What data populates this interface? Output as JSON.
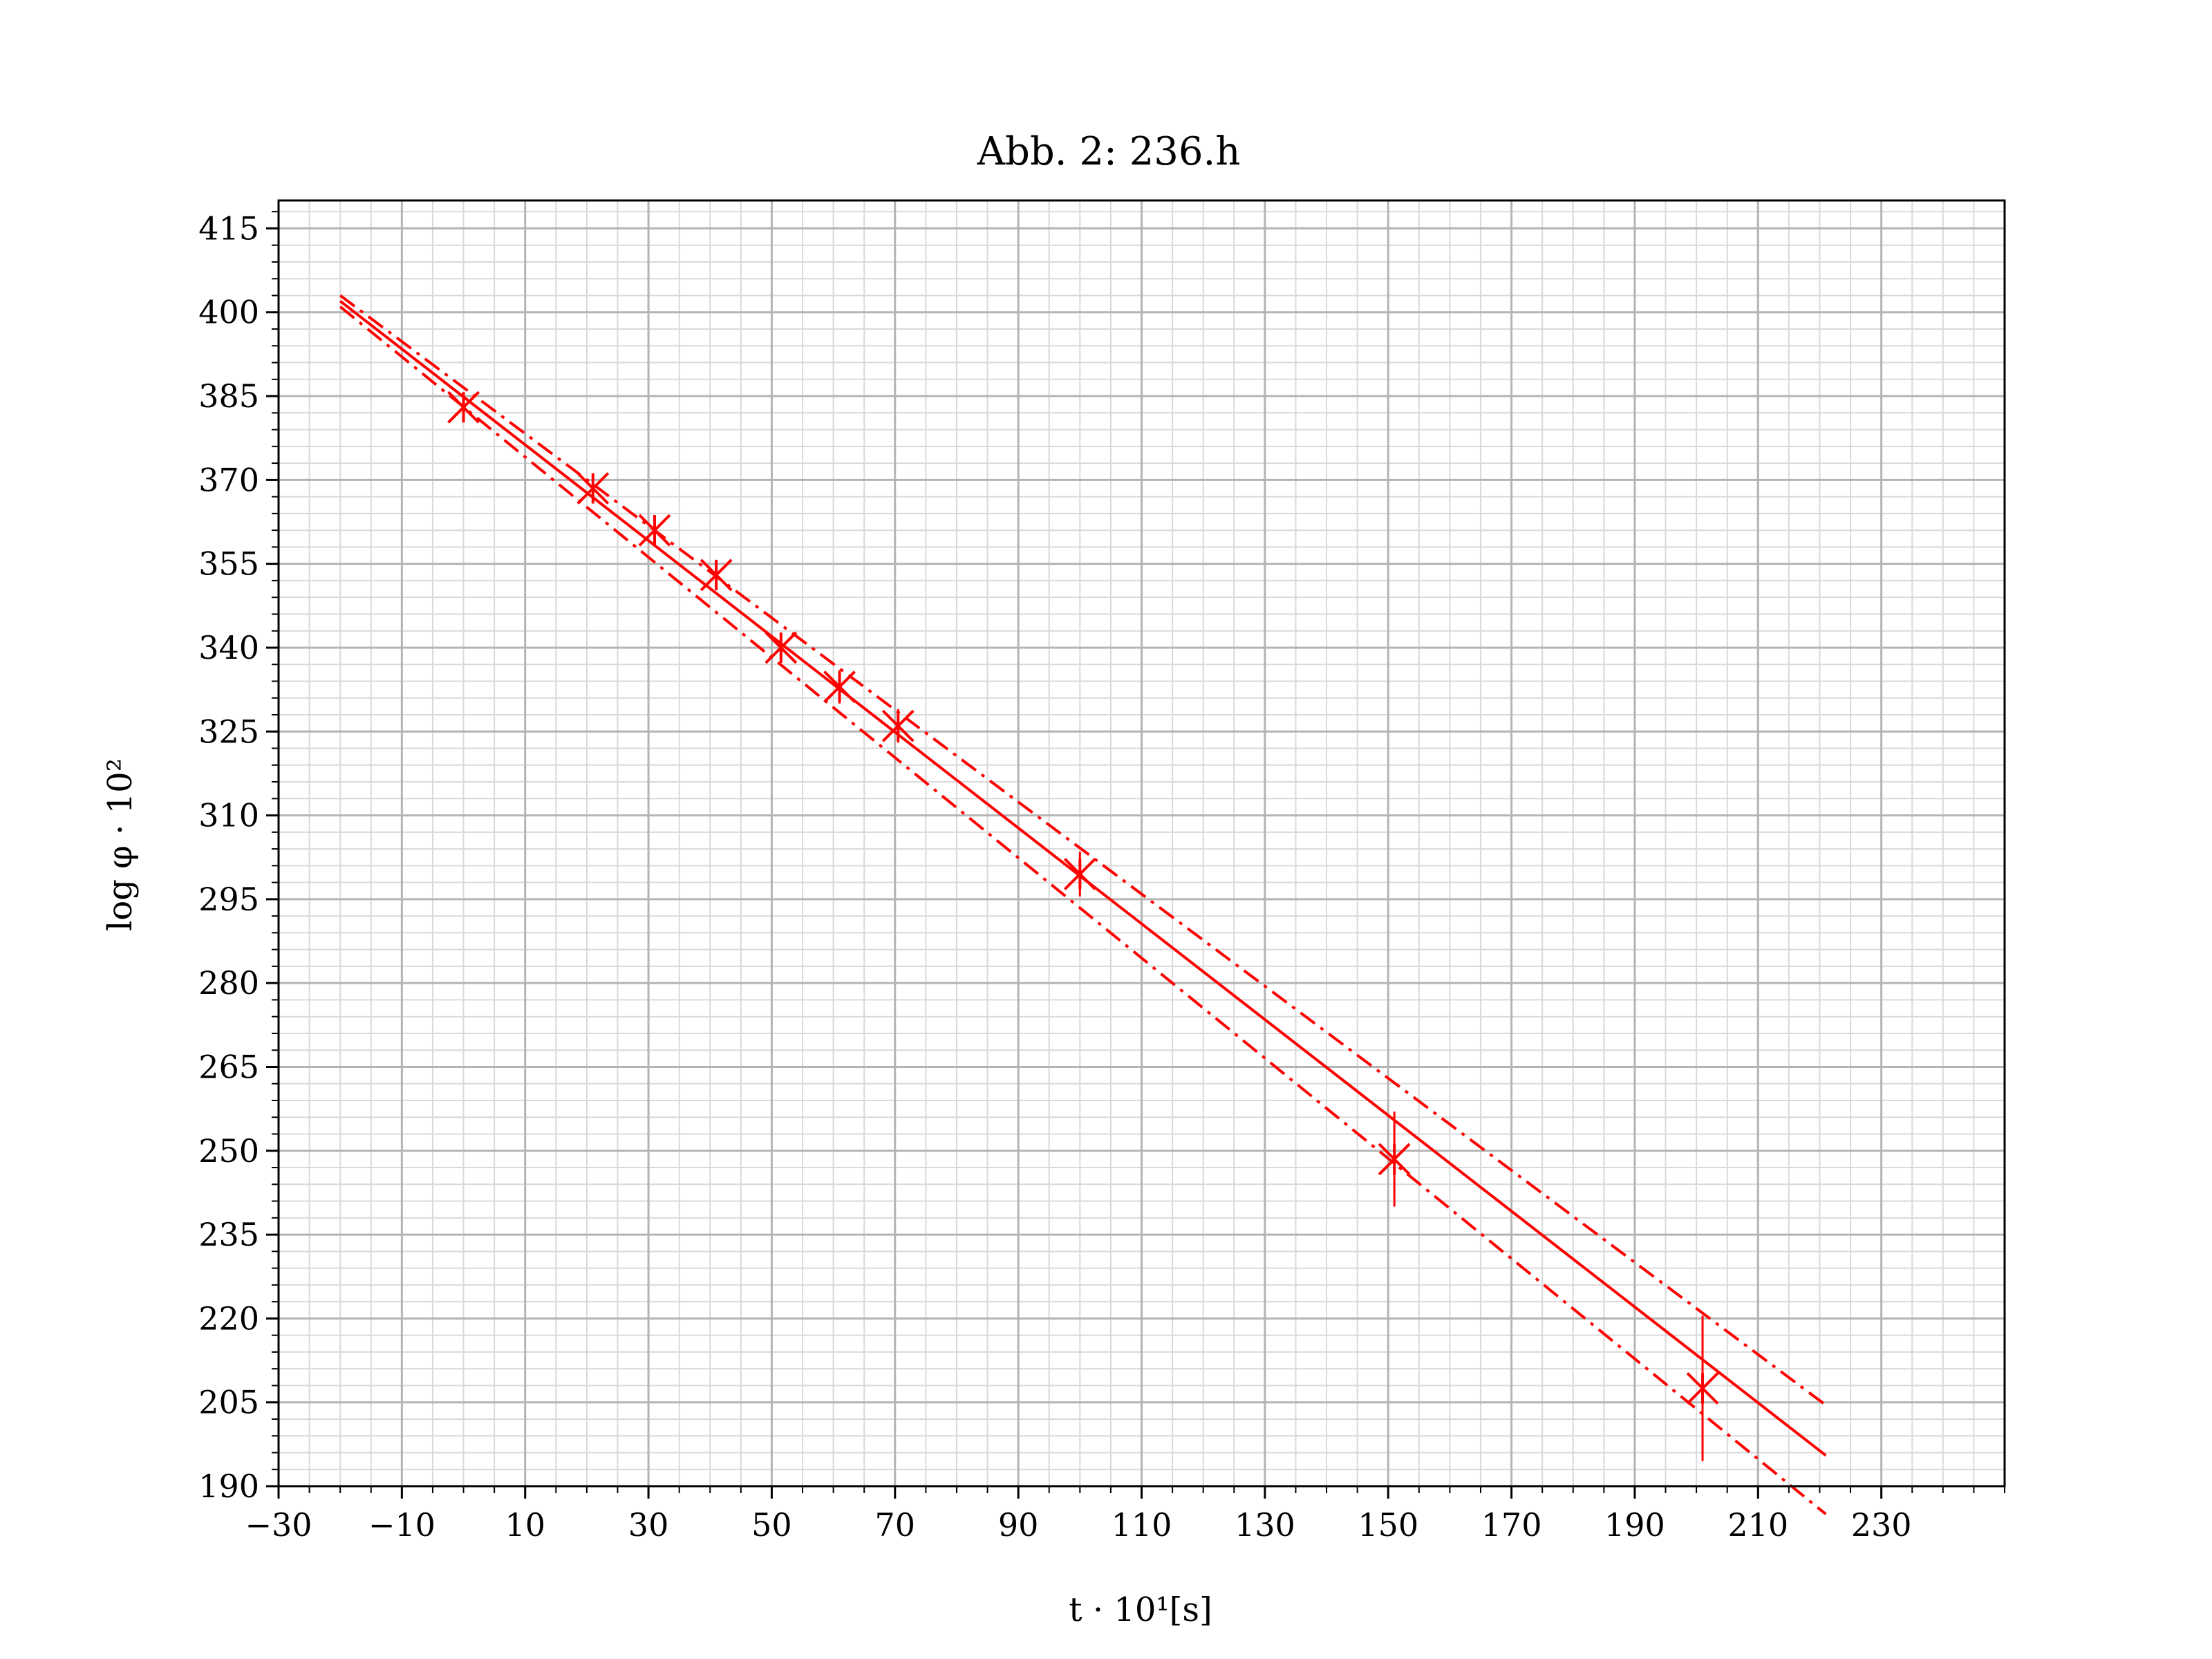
{
  "chart_data": {
    "type": "line",
    "title": "Abb. 2: 236.h",
    "xlabel": "t · 10¹[s]",
    "ylabel": "log φ · 10²",
    "xlim": [
      -30,
      250
    ],
    "ylim": [
      190,
      420
    ],
    "x_ticks": [
      -30,
      -10,
      10,
      30,
      50,
      70,
      90,
      110,
      130,
      150,
      170,
      190,
      210,
      230
    ],
    "x_tick_labels": [
      "−30",
      "−10",
      "10",
      "30",
      "50",
      "70",
      "90",
      "110",
      "130",
      "150",
      "170",
      "190",
      "210",
      "230"
    ],
    "y_ticks": [
      190,
      205,
      220,
      235,
      250,
      265,
      280,
      295,
      310,
      325,
      340,
      355,
      370,
      385,
      400,
      415
    ],
    "y_tick_labels": [
      "190",
      "205",
      "220",
      "235",
      "250",
      "265",
      "280",
      "295",
      "310",
      "325",
      "340",
      "355",
      "370",
      "385",
      "400",
      "415"
    ],
    "grid": true,
    "color": "#ff0000",
    "series": [
      {
        "style": "markers",
        "marker": "x-star",
        "x": [
          0,
          21,
          31,
          41,
          51.5,
          61,
          70.5,
          100,
          151,
          201
        ],
        "y": [
          383,
          368.5,
          361,
          353,
          340,
          333,
          326,
          299.5,
          248.5,
          207.5
        ],
        "y_err": [
          2,
          2,
          2,
          2,
          2.5,
          3,
          3,
          4,
          8.5,
          13
        ]
      },
      {
        "style": "solid",
        "x": [
          -20,
          221
        ],
        "y": [
          402,
          195.5
        ]
      },
      {
        "style": "dash-dot",
        "x": [
          -20,
          221
        ],
        "y": [
          403,
          204.5
        ]
      },
      {
        "style": "dash-dot",
        "x": [
          -20,
          221
        ],
        "y": [
          401,
          185
        ]
      }
    ]
  }
}
